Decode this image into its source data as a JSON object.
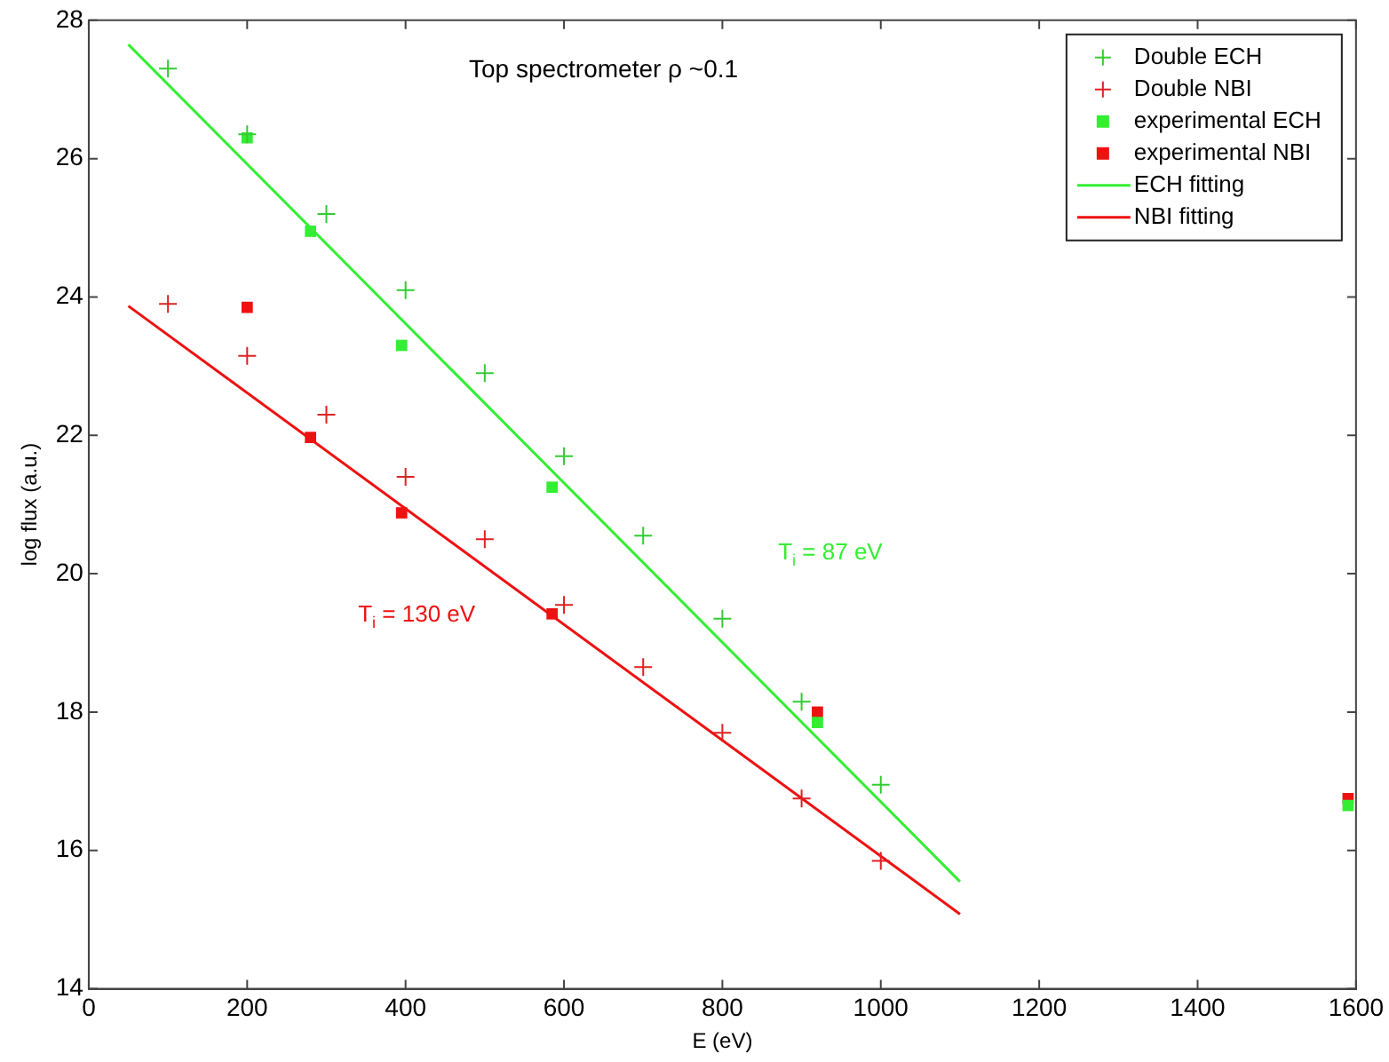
{
  "chart_data": {
    "type": "scatter",
    "title": "Top spectrometer ρ ~0.1",
    "xlabel": "E (eV)",
    "ylabel": "log flux (a.u.)",
    "xlim": [
      0,
      1600
    ],
    "xticks": [
      0,
      200,
      400,
      600,
      800,
      1000,
      1200,
      1400,
      1600
    ],
    "ylim": [
      14,
      28
    ],
    "yticks": [
      14,
      16,
      18,
      20,
      22,
      24,
      26,
      28
    ],
    "grid": false,
    "legend": "top right",
    "annotations": [
      "T$_{i}$ = 87 eV",
      "T$_{i}$ = 130 eV"
    ],
    "series": [
      {
        "name": "Double ECH",
        "type": "scatter",
        "marker": "cross",
        "color": "#33cc33",
        "x": [
          100,
          200,
          300,
          400,
          500,
          600,
          700,
          800,
          900,
          1000
        ],
        "values": [
          27.3,
          26.35,
          25.2,
          24.1,
          22.9,
          21.7,
          20.55,
          19.35,
          18.15,
          16.95
        ]
      },
      {
        "name": "Double NBI",
        "type": "scatter",
        "marker": "cross",
        "color": "#dd2222",
        "x": [
          100,
          200,
          300,
          400,
          500,
          600,
          700,
          800,
          900,
          1000
        ],
        "values": [
          23.9,
          23.15,
          22.3,
          21.4,
          20.5,
          19.55,
          18.65,
          17.7,
          16.75,
          15.85
        ]
      },
      {
        "name": "experimental ECH",
        "type": "scatter",
        "marker": "square",
        "color": "#33ee33",
        "x": [
          200,
          280,
          395,
          585,
          920,
          1590
        ],
        "values": [
          26.3,
          24.95,
          23.3,
          21.25,
          17.85,
          16.65
        ]
      },
      {
        "name": "experimental NBI",
        "type": "scatter",
        "marker": "square",
        "color": "#ee1111",
        "x": [
          200,
          280,
          395,
          585,
          920,
          1590
        ],
        "values": [
          23.85,
          21.97,
          20.88,
          19.42,
          18.0,
          16.75
        ]
      },
      {
        "name": "ECH fitting",
        "type": "line",
        "marker": "none",
        "color": "#33ee33",
        "x": [
          50,
          1100
        ],
        "values": [
          27.65,
          15.55
        ]
      },
      {
        "name": "NBI fitting",
        "type": "line",
        "marker": "none",
        "color": "#ee1111",
        "x": [
          50,
          1100
        ],
        "values": [
          23.87,
          15.08
        ]
      }
    ]
  }
}
